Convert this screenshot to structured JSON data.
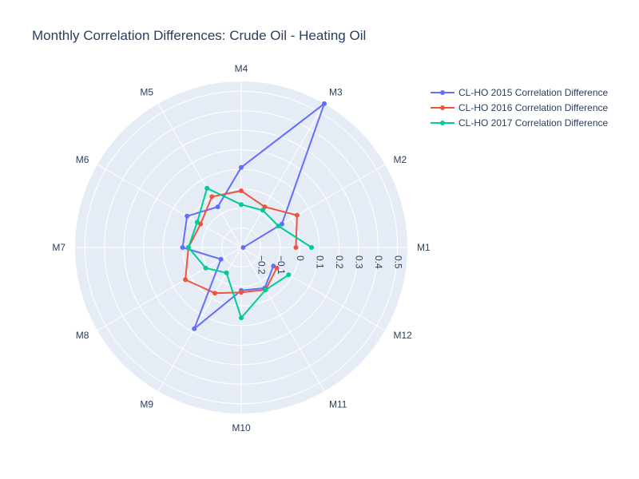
{
  "chart_data": {
    "type": "polar-line",
    "title": "Monthly Correlation Differences: Crude Oil - Heating Oil",
    "angular_categories": [
      "M1",
      "M2",
      "M3",
      "M4",
      "M5",
      "M6",
      "M7",
      "M8",
      "M9",
      "M10",
      "M11",
      "M12"
    ],
    "radial_range": [
      -0.3,
      0.55
    ],
    "radial_ticks": [
      "−0.2",
      "−0.1",
      "0",
      "0.1",
      "0.2",
      "0.3",
      "0.4",
      "0.5"
    ],
    "radial_tick_values": [
      -0.2,
      -0.1,
      0,
      0.1,
      0.2,
      0.3,
      0.4,
      0.5
    ],
    "grid": true,
    "legend_position": "top-right",
    "series": [
      {
        "name": "CL-HO 2015 Correlation Difference",
        "color": "#636efa",
        "values": [
          -0.29,
          -0.06,
          0.55,
          0.11,
          -0.06,
          0.02,
          0.0,
          -0.18,
          0.18,
          -0.08,
          -0.06,
          -0.11
        ]
      },
      {
        "name": "CL-HO 2016 Correlation Difference",
        "color": "#ef553b",
        "values": [
          -0.02,
          0.03,
          -0.06,
          -0.01,
          0.0,
          -0.06,
          -0.03,
          0.03,
          -0.03,
          -0.07,
          -0.05,
          -0.09
        ]
      },
      {
        "name": "CL-HO 2017 Correlation Difference",
        "color": "#00cc96",
        "values": [
          0.06,
          -0.08,
          -0.08,
          -0.08,
          0.05,
          -0.04,
          -0.03,
          -0.09,
          -0.15,
          0.06,
          -0.05,
          -0.02
        ]
      }
    ]
  }
}
